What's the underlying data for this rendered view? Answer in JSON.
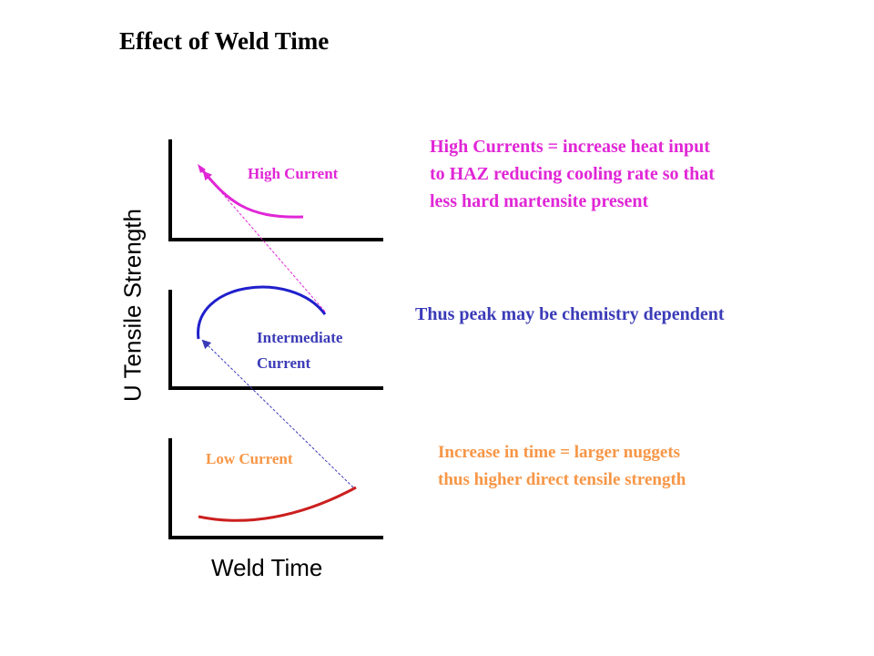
{
  "title": "Effect of Weld Time",
  "axes": {
    "ylabel": "U Tensile Strength",
    "xlabel": "Weld Time"
  },
  "curves": {
    "high": {
      "label": "High Current",
      "color": "#e026d6"
    },
    "intermediate": {
      "label_line1": "Intermediate",
      "label_line2": "Current",
      "color": "#3b3bb8"
    },
    "low": {
      "label": "Low Current",
      "color": "#f79646",
      "curve_color": "#cc1f1f"
    }
  },
  "notes": {
    "high": {
      "line1": "High Currents =  increase heat input",
      "line2": "to HAZ reducing cooling rate so that",
      "line3": "less hard martensite present"
    },
    "peak": "Thus peak may be chemistry dependent",
    "low": {
      "line1": "Increase in time = larger nuggets",
      "line2": "thus higher direct tensile strength"
    }
  },
  "colors": {
    "axes": "#000000",
    "high_curve": "#e026d6",
    "intermediate_curve": "#1f1fcc",
    "low_curve": "#cc1f1f",
    "arrow_high": "#e026d6",
    "arrow_low": "#3b3bb8"
  }
}
